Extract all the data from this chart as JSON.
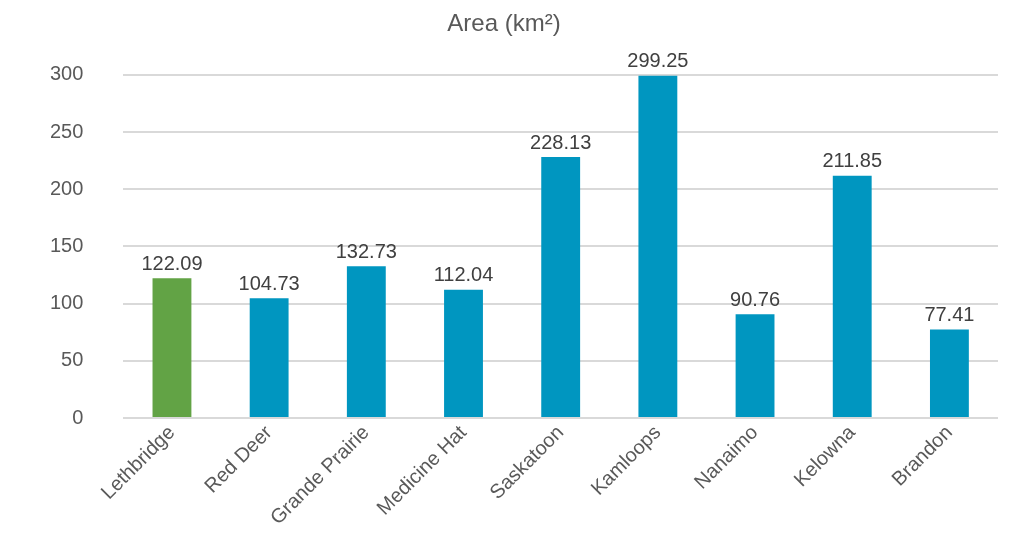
{
  "chart_data": {
    "type": "bar",
    "title": "Area (km²)",
    "categories": [
      "Lethbridge",
      "Red Deer",
      "Grande Prairie",
      "Medicine Hat",
      "Saskatoon",
      "Kamloops",
      "Nanaimo",
      "Kelowna",
      "Brandon"
    ],
    "values": [
      122.09,
      104.73,
      132.73,
      112.04,
      228.13,
      299.25,
      90.76,
      211.85,
      77.41
    ],
    "colors": [
      "#62a345",
      "#0096c0",
      "#0096c0",
      "#0096c0",
      "#0096c0",
      "#0096c0",
      "#0096c0",
      "#0096c0",
      "#0096c0"
    ],
    "ylim": [
      0,
      300
    ],
    "yticks": [
      0,
      50,
      100,
      150,
      200,
      250,
      300
    ],
    "grid": "y",
    "legend": false,
    "data_labels": true
  }
}
